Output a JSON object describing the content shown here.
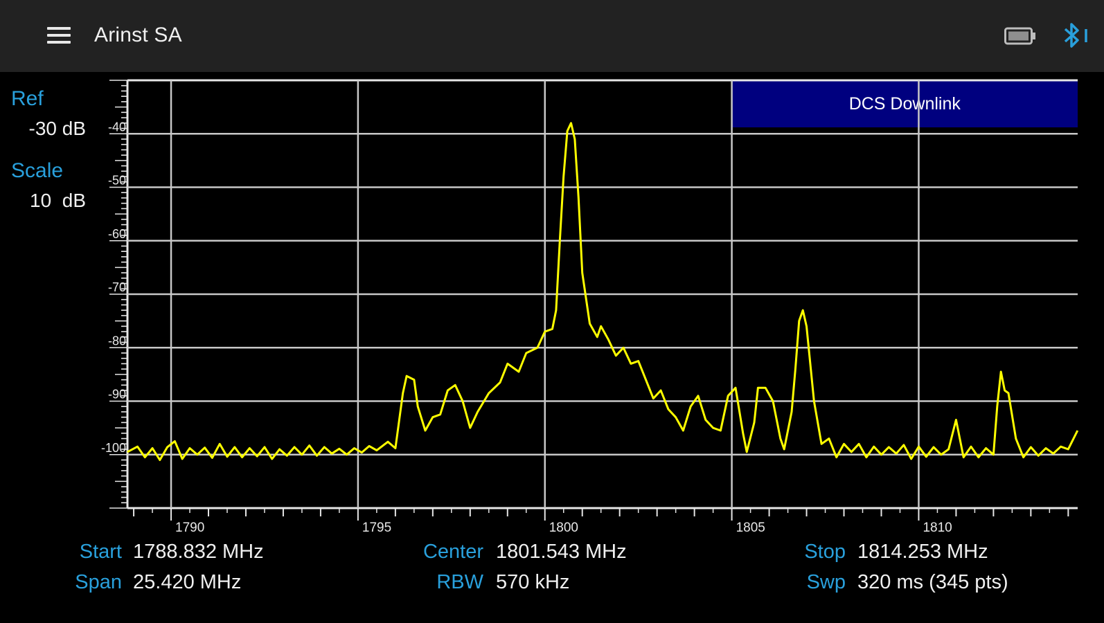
{
  "app": {
    "title": "Arinst SA",
    "menu_icon": "hamburger-menu-icon",
    "battery_icon": "battery-icon",
    "bluetooth_icon": "bluetooth-icon"
  },
  "ref": {
    "label": "Ref",
    "value": "-30 dB"
  },
  "scale": {
    "label": "Scale",
    "value": "10  dB"
  },
  "band_label": "DCS Downlink",
  "colors": {
    "trace": "#ffff00",
    "accent": "#29a0dc",
    "band": "#00007f",
    "grid": "#c8c8c8",
    "appbar": "#222222"
  },
  "footer": {
    "start": {
      "label": "Start",
      "value": "1788.832 MHz"
    },
    "span": {
      "label": "Span",
      "value": "25.420 MHz"
    },
    "center": {
      "label": "Center",
      "value": "1801.543 MHz"
    },
    "rbw": {
      "label": "RBW",
      "value": "570 kHz"
    },
    "stop": {
      "label": "Stop",
      "value": "1814.253 MHz"
    },
    "swp": {
      "label": "Swp",
      "value": "320 ms (345 pts)"
    }
  },
  "chart_data": {
    "type": "line",
    "x_unit": "MHz",
    "y_unit": "dB",
    "xlim": [
      1788.832,
      1814.253
    ],
    "ylim": [
      -110,
      -30
    ],
    "x_ticks": [
      1790,
      1795,
      1800,
      1805,
      1810
    ],
    "y_ticks": [
      -40,
      -50,
      -60,
      -70,
      -80,
      -90,
      -100
    ],
    "band": {
      "label": "DCS Downlink",
      "x_start": 1805,
      "x_end": 1814.253
    },
    "grid": true,
    "series": [
      {
        "points": [
          [
            1788.83,
            -99.5
          ],
          [
            1789.1,
            -98.5
          ],
          [
            1789.3,
            -100.5
          ],
          [
            1789.5,
            -98.8
          ],
          [
            1789.7,
            -101.0
          ],
          [
            1789.9,
            -98.6
          ],
          [
            1790.1,
            -97.5
          ],
          [
            1790.3,
            -100.8
          ],
          [
            1790.5,
            -98.8
          ],
          [
            1790.7,
            -100.0
          ],
          [
            1790.9,
            -98.7
          ],
          [
            1791.1,
            -100.6
          ],
          [
            1791.3,
            -98.0
          ],
          [
            1791.5,
            -100.4
          ],
          [
            1791.7,
            -98.6
          ],
          [
            1791.9,
            -100.5
          ],
          [
            1792.1,
            -98.8
          ],
          [
            1792.3,
            -100.3
          ],
          [
            1792.5,
            -98.6
          ],
          [
            1792.7,
            -100.8
          ],
          [
            1792.9,
            -99.0
          ],
          [
            1793.1,
            -100.2
          ],
          [
            1793.3,
            -98.6
          ],
          [
            1793.5,
            -100.0
          ],
          [
            1793.7,
            -98.3
          ],
          [
            1793.9,
            -100.2
          ],
          [
            1794.1,
            -98.6
          ],
          [
            1794.3,
            -99.8
          ],
          [
            1794.5,
            -98.9
          ],
          [
            1794.7,
            -100.0
          ],
          [
            1794.9,
            -98.8
          ],
          [
            1795.1,
            -99.6
          ],
          [
            1795.3,
            -98.4
          ],
          [
            1795.5,
            -99.2
          ],
          [
            1795.8,
            -97.6
          ],
          [
            1796.0,
            -98.8
          ],
          [
            1796.2,
            -88.5
          ],
          [
            1796.3,
            -85.3
          ],
          [
            1796.5,
            -86.0
          ],
          [
            1796.6,
            -91.0
          ],
          [
            1796.8,
            -95.5
          ],
          [
            1797.0,
            -93.0
          ],
          [
            1797.2,
            -92.5
          ],
          [
            1797.4,
            -88.0
          ],
          [
            1797.6,
            -87.0
          ],
          [
            1797.8,
            -90.0
          ],
          [
            1798.0,
            -95.0
          ],
          [
            1798.2,
            -92.0
          ],
          [
            1798.5,
            -88.5
          ],
          [
            1798.8,
            -86.5
          ],
          [
            1799.0,
            -83.0
          ],
          [
            1799.3,
            -84.5
          ],
          [
            1799.5,
            -81.0
          ],
          [
            1799.8,
            -80.0
          ],
          [
            1800.0,
            -77.0
          ],
          [
            1800.2,
            -76.5
          ],
          [
            1800.3,
            -73.0
          ],
          [
            1800.4,
            -60.0
          ],
          [
            1800.5,
            -48.0
          ],
          [
            1800.6,
            -39.5
          ],
          [
            1800.7,
            -38.0
          ],
          [
            1800.8,
            -41.0
          ],
          [
            1800.9,
            -52.0
          ],
          [
            1801.0,
            -66.0
          ],
          [
            1801.2,
            -75.5
          ],
          [
            1801.4,
            -78.0
          ],
          [
            1801.5,
            -76.0
          ],
          [
            1801.7,
            -78.5
          ],
          [
            1801.9,
            -81.5
          ],
          [
            1802.1,
            -80.0
          ],
          [
            1802.3,
            -83.0
          ],
          [
            1802.5,
            -82.5
          ],
          [
            1802.7,
            -86.0
          ],
          [
            1802.9,
            -89.5
          ],
          [
            1803.1,
            -88.0
          ],
          [
            1803.3,
            -91.5
          ],
          [
            1803.5,
            -93.0
          ],
          [
            1803.7,
            -95.5
          ],
          [
            1803.9,
            -91.0
          ],
          [
            1804.1,
            -89.0
          ],
          [
            1804.3,
            -93.5
          ],
          [
            1804.5,
            -95.0
          ],
          [
            1804.7,
            -95.5
          ],
          [
            1804.9,
            -89.0
          ],
          [
            1805.1,
            -87.5
          ],
          [
            1805.3,
            -96.0
          ],
          [
            1805.4,
            -99.5
          ],
          [
            1805.6,
            -94.0
          ],
          [
            1805.7,
            -87.5
          ],
          [
            1805.9,
            -87.5
          ],
          [
            1806.1,
            -90.0
          ],
          [
            1806.3,
            -97.0
          ],
          [
            1806.4,
            -99.0
          ],
          [
            1806.6,
            -92.0
          ],
          [
            1806.7,
            -84.0
          ],
          [
            1806.8,
            -75.0
          ],
          [
            1806.9,
            -73.0
          ],
          [
            1807.0,
            -76.0
          ],
          [
            1807.2,
            -90.0
          ],
          [
            1807.4,
            -98.0
          ],
          [
            1807.6,
            -97.0
          ],
          [
            1807.8,
            -100.5
          ],
          [
            1808.0,
            -98.0
          ],
          [
            1808.2,
            -99.5
          ],
          [
            1808.4,
            -98.0
          ],
          [
            1808.6,
            -100.5
          ],
          [
            1808.8,
            -98.5
          ],
          [
            1809.0,
            -100.0
          ],
          [
            1809.2,
            -98.6
          ],
          [
            1809.4,
            -99.8
          ],
          [
            1809.6,
            -98.2
          ],
          [
            1809.8,
            -100.8
          ],
          [
            1810.0,
            -98.5
          ],
          [
            1810.2,
            -100.4
          ],
          [
            1810.4,
            -98.6
          ],
          [
            1810.6,
            -100.0
          ],
          [
            1810.8,
            -99.0
          ],
          [
            1811.0,
            -93.5
          ],
          [
            1811.2,
            -100.5
          ],
          [
            1811.4,
            -98.5
          ],
          [
            1811.6,
            -100.5
          ],
          [
            1811.8,
            -98.8
          ],
          [
            1812.0,
            -100.0
          ],
          [
            1812.1,
            -91.0
          ],
          [
            1812.2,
            -84.5
          ],
          [
            1812.3,
            -88.0
          ],
          [
            1812.4,
            -88.5
          ],
          [
            1812.6,
            -97.0
          ],
          [
            1812.8,
            -100.5
          ],
          [
            1813.0,
            -98.6
          ],
          [
            1813.2,
            -100.2
          ],
          [
            1813.4,
            -98.8
          ],
          [
            1813.6,
            -99.8
          ],
          [
            1813.8,
            -98.5
          ],
          [
            1814.0,
            -99.0
          ],
          [
            1814.25,
            -95.5
          ]
        ]
      }
    ]
  }
}
